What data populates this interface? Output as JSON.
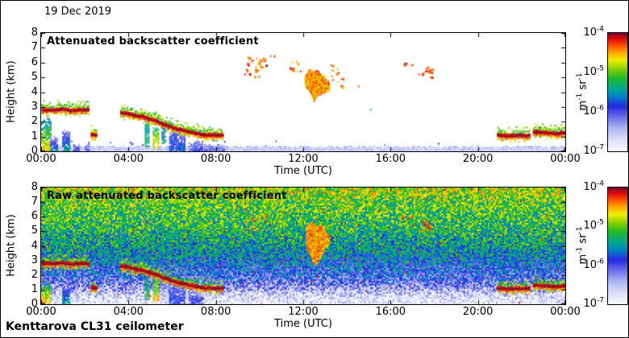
{
  "figure": {
    "date": "19 Dec 2019",
    "footer": "Kenttarova CL31 ceilometer",
    "background": "#ffffff",
    "border_color": "#000000"
  },
  "colormap": {
    "scale": "log",
    "stops": [
      {
        "p": 0.0,
        "c": "#f8f8ff"
      },
      {
        "p": 0.1,
        "c": "#dcdef8"
      },
      {
        "p": 0.2,
        "c": "#aab2f2"
      },
      {
        "p": 0.3,
        "c": "#6066ea"
      },
      {
        "p": 0.38,
        "c": "#2428e0"
      },
      {
        "p": 0.46,
        "c": "#0080c8"
      },
      {
        "p": 0.53,
        "c": "#00a890"
      },
      {
        "p": 0.62,
        "c": "#22b82a"
      },
      {
        "p": 0.7,
        "c": "#8ed000"
      },
      {
        "p": 0.77,
        "c": "#eeee00"
      },
      {
        "p": 0.83,
        "c": "#ffaa00"
      },
      {
        "p": 0.89,
        "c": "#ff5500"
      },
      {
        "p": 0.95,
        "c": "#dd0a0a"
      },
      {
        "p": 1.0,
        "c": "#6e0b33"
      }
    ]
  },
  "chart_data": [
    {
      "type": "heatmap",
      "title": "Attenuated backscatter coefficient",
      "xlabel": "Time (UTC)",
      "ylabel": "Height (km)",
      "xlim_hours": [
        0,
        24
      ],
      "ylim_km": [
        0,
        8
      ],
      "xticks": {
        "hours": [
          0,
          4,
          8,
          12,
          16,
          20,
          24
        ],
        "labels": [
          "00:00",
          "04:00",
          "08:00",
          "12:00",
          "16:00",
          "20:00",
          "00:00"
        ]
      },
      "yticks": [
        0,
        1,
        2,
        3,
        4,
        5,
        6,
        7,
        8
      ],
      "colorbar": {
        "label": "m^-1 sr^-1",
        "ticks": [
          "10^-4",
          "10^-5",
          "10^-6",
          "10^-7"
        ],
        "min": "1e-7 m-1 sr-1",
        "max": "1e-4 m-1 sr-1",
        "position": "right"
      },
      "render": {
        "seed": 7,
        "background": "#ffffff",
        "features": [
          {
            "type": "strip",
            "km_top": 0.38,
            "v": [
              0.08,
              0.2
            ]
          },
          {
            "type": "column",
            "t": [
              0.0,
              0.45
            ],
            "km": [
              0,
              2.3
            ],
            "v": [
              0.82,
              0.45
            ]
          },
          {
            "type": "column",
            "t": [
              0.45,
              0.8
            ],
            "km": [
              0,
              1.05
            ],
            "v": [
              0.5,
              0.22
            ]
          },
          {
            "type": "column",
            "t": [
              1.0,
              1.35
            ],
            "km": [
              0,
              1.45
            ],
            "v": [
              0.52,
              0.25
            ]
          },
          {
            "type": "column",
            "t": [
              1.5,
              1.75
            ],
            "km": [
              0,
              0.55
            ],
            "v": [
              0.38,
              0.18
            ]
          },
          {
            "type": "column",
            "t": [
              2.05,
              2.25
            ],
            "km": [
              0,
              0.6
            ],
            "v": [
              0.34,
              0.16
            ]
          },
          {
            "type": "column",
            "t": [
              4.78,
              4.97
            ],
            "km": [
              0.35,
              2.1
            ],
            "v": [
              0.55,
              0.5
            ]
          },
          {
            "type": "column",
            "t": [
              5.15,
              5.42
            ],
            "km": [
              0.25,
              1.95
            ],
            "v": [
              0.78,
              0.55
            ]
          },
          {
            "type": "column",
            "t": [
              5.55,
              5.72
            ],
            "km": [
              0.55,
              1.7
            ],
            "v": [
              0.5,
              0.45
            ]
          },
          {
            "type": "column",
            "t": [
              5.9,
              6.22
            ],
            "km": [
              0,
              1.55
            ],
            "v": [
              0.42,
              0.3
            ]
          },
          {
            "type": "column",
            "t": [
              6.28,
              6.6
            ],
            "km": [
              0,
              1.3
            ],
            "v": [
              0.44,
              0.3
            ]
          },
          {
            "type": "column",
            "t": [
              6.8,
              7.45
            ],
            "km": [
              0,
              0.68
            ],
            "v": [
              0.36,
              0.2
            ]
          },
          {
            "type": "column",
            "t": [
              7.5,
              8.45
            ],
            "km": [
              0,
              0.5
            ],
            "v": [
              0.3,
              0.18
            ]
          },
          {
            "type": "layer",
            "points": [
              [
                0.05,
                2.8
              ],
              [
                0.6,
                2.78
              ],
              [
                1.0,
                2.86
              ],
              [
                1.4,
                2.72
              ],
              [
                1.8,
                2.8
              ],
              [
                2.2,
                2.78
              ]
            ]
          },
          {
            "type": "layer",
            "points": [
              [
                2.3,
                1.15
              ],
              [
                2.55,
                1.1
              ]
            ]
          },
          {
            "type": "layer",
            "points": [
              [
                3.65,
                2.6
              ],
              [
                4.0,
                2.55
              ],
              [
                4.35,
                2.4
              ],
              [
                4.7,
                2.33
              ],
              [
                5.0,
                2.15
              ],
              [
                5.3,
                2.02
              ],
              [
                5.6,
                1.83
              ],
              [
                5.9,
                1.68
              ],
              [
                6.2,
                1.52
              ],
              [
                6.55,
                1.4
              ],
              [
                6.9,
                1.28
              ],
              [
                7.25,
                1.16
              ],
              [
                7.6,
                1.1
              ],
              [
                8.0,
                1.08
              ],
              [
                8.35,
                1.1
              ]
            ]
          },
          {
            "type": "layer",
            "points": [
              [
                20.9,
                1.1
              ],
              [
                21.4,
                1.04
              ],
              [
                21.9,
                1.07
              ],
              [
                22.4,
                1.05
              ]
            ]
          },
          {
            "type": "layer",
            "points": [
              [
                22.55,
                1.3
              ],
              [
                23.1,
                1.25
              ],
              [
                23.6,
                1.2
              ],
              [
                24.0,
                1.24
              ]
            ]
          },
          {
            "type": "cluster",
            "t": [
              9.25,
              10.35
            ],
            "km": [
              5.0,
              6.45
            ],
            "density": 0.16,
            "v": [
              0.8,
              0.97
            ]
          },
          {
            "type": "cluster",
            "t": [
              10.5,
              10.7
            ],
            "km": [
              6.3,
              6.6
            ],
            "density": 0.35,
            "v": [
              0.85,
              0.95
            ]
          },
          {
            "type": "cluster",
            "t": [
              11.35,
              12.05
            ],
            "km": [
              5.3,
              6.15
            ],
            "density": 0.14,
            "v": [
              0.8,
              0.95
            ]
          },
          {
            "type": "blob",
            "profile": [
              [
                12.1,
                5.0,
                4.5
              ],
              [
                12.3,
                5.55,
                4.2
              ],
              [
                12.5,
                5.3,
                3.45
              ],
              [
                12.65,
                5.4,
                3.8
              ],
              [
                12.9,
                5.1,
                4.05
              ],
              [
                13.1,
                4.75,
                4.1
              ],
              [
                13.25,
                4.45,
                4.3
              ]
            ]
          },
          {
            "type": "cluster",
            "t": [
              13.25,
              13.85
            ],
            "km": [
              4.1,
              5.9
            ],
            "density": 0.12,
            "v": [
              0.78,
              0.92
            ]
          },
          {
            "type": "cluster",
            "t": [
              14.4,
              14.55
            ],
            "km": [
              4.35,
              4.55
            ],
            "density": 0.3,
            "v": [
              0.84,
              0.9
            ]
          },
          {
            "type": "cluster",
            "t": [
              16.55,
              17.05
            ],
            "km": [
              5.75,
              6.05
            ],
            "density": 0.4,
            "v": [
              0.88,
              0.97
            ]
          },
          {
            "type": "cluster",
            "t": [
              17.3,
              17.95
            ],
            "km": [
              4.95,
              5.7
            ],
            "density": 0.32,
            "v": [
              0.85,
              0.98
            ]
          },
          {
            "type": "cluster",
            "t": [
              15.05,
              15.2
            ],
            "km": [
              2.8,
              2.95
            ],
            "density": 0.3,
            "v": [
              0.58,
              0.65
            ]
          },
          {
            "type": "cluster",
            "t": [
              0.3,
              24
            ],
            "km": [
              0.4,
              0.75
            ],
            "density": 0.012,
            "v": [
              0.2,
              0.38
            ]
          }
        ]
      }
    },
    {
      "type": "heatmap",
      "title": "Raw attenuated backscatter coefficient",
      "xlabel": "Time (UTC)",
      "ylabel": "Height (km)",
      "xlim_hours": [
        0,
        24
      ],
      "ylim_km": [
        0,
        8
      ],
      "xticks": {
        "hours": [
          0,
          4,
          8,
          12,
          16,
          20,
          24
        ],
        "labels": [
          "00:00",
          "04:00",
          "08:00",
          "12:00",
          "16:00",
          "20:00",
          "00:00"
        ]
      },
      "yticks": [
        0,
        1,
        2,
        3,
        4,
        5,
        6,
        7,
        8
      ],
      "colorbar": {
        "label": "m^-1 sr^-1",
        "ticks": [
          "10^-4",
          "10^-5",
          "10^-6",
          "10^-7"
        ],
        "min": "1e-7 m-1 sr-1",
        "max": "1e-4 m-1 sr-1",
        "position": "right"
      },
      "render": {
        "seed": 11,
        "noise_profile": [
          [
            0,
            0.04
          ],
          [
            0.4,
            0.07
          ],
          [
            0.9,
            0.16
          ],
          [
            1.4,
            0.28
          ],
          [
            2.0,
            0.35
          ],
          [
            3.0,
            0.44
          ],
          [
            4.0,
            0.52
          ],
          [
            5.0,
            0.58
          ],
          [
            6.0,
            0.62
          ],
          [
            7.0,
            0.66
          ],
          [
            7.6,
            0.7
          ],
          [
            8.0,
            0.72
          ]
        ],
        "noise_jitter": 0.34,
        "hot_speck_probability": 0.004,
        "features": [
          {
            "type": "column",
            "t": [
              0.0,
              0.5
            ],
            "km": [
              0,
              1.6
            ],
            "v": [
              0.85,
              0.5
            ]
          },
          {
            "type": "column",
            "t": [
              1.0,
              1.35
            ],
            "km": [
              0,
              1.4
            ],
            "v": [
              0.5,
              0.3
            ]
          },
          {
            "type": "column",
            "t": [
              4.78,
              4.97
            ],
            "km": [
              0.35,
              2.1
            ],
            "v": [
              0.6,
              0.5
            ]
          },
          {
            "type": "column",
            "t": [
              5.15,
              5.42
            ],
            "km": [
              0.25,
              1.95
            ],
            "v": [
              0.8,
              0.55
            ]
          },
          {
            "type": "column",
            "t": [
              5.9,
              6.6
            ],
            "km": [
              0,
              1.5
            ],
            "v": [
              0.38,
              0.3
            ]
          },
          {
            "type": "column",
            "t": [
              6.8,
              7.4
            ],
            "km": [
              0,
              0.8
            ],
            "v": [
              0.35,
              0.25
            ]
          },
          {
            "type": "layer",
            "points": [
              [
                0.05,
                2.8
              ],
              [
                0.6,
                2.78
              ],
              [
                1.0,
                2.86
              ],
              [
                1.4,
                2.72
              ],
              [
                1.8,
                2.8
              ],
              [
                2.2,
                2.78
              ]
            ]
          },
          {
            "type": "layer",
            "points": [
              [
                2.3,
                1.15
              ],
              [
                2.55,
                1.1
              ]
            ]
          },
          {
            "type": "layer",
            "points": [
              [
                3.65,
                2.6
              ],
              [
                4.0,
                2.55
              ],
              [
                4.35,
                2.4
              ],
              [
                4.7,
                2.33
              ],
              [
                5.0,
                2.15
              ],
              [
                5.3,
                2.02
              ],
              [
                5.6,
                1.83
              ],
              [
                5.9,
                1.68
              ],
              [
                6.2,
                1.52
              ],
              [
                6.55,
                1.4
              ],
              [
                6.9,
                1.28
              ],
              [
                7.25,
                1.16
              ],
              [
                7.6,
                1.1
              ],
              [
                8.0,
                1.08
              ],
              [
                8.35,
                1.1
              ]
            ]
          },
          {
            "type": "layer",
            "points": [
              [
                20.9,
                1.1
              ],
              [
                21.4,
                1.04
              ],
              [
                21.9,
                1.07
              ],
              [
                22.4,
                1.05
              ]
            ]
          },
          {
            "type": "layer",
            "points": [
              [
                22.55,
                1.3
              ],
              [
                23.1,
                1.25
              ],
              [
                23.6,
                1.2
              ],
              [
                24.0,
                1.24
              ]
            ]
          },
          {
            "type": "cluster",
            "t": [
              9.3,
              10.3
            ],
            "km": [
              5.0,
              6.4
            ],
            "density": 0.1,
            "v": [
              0.8,
              0.92
            ]
          },
          {
            "type": "blob",
            "profile": [
              [
                12.15,
                5.3,
                4.1
              ],
              [
                12.4,
                5.6,
                3.2
              ],
              [
                12.6,
                5.2,
                2.7
              ],
              [
                12.8,
                5.4,
                3.3
              ],
              [
                13.0,
                5.0,
                3.9
              ],
              [
                13.2,
                4.6,
                4.1
              ]
            ]
          },
          {
            "type": "cluster",
            "t": [
              16.55,
              17.05
            ],
            "km": [
              5.75,
              6.05
            ],
            "density": 0.35,
            "v": [
              0.86,
              0.95
            ]
          },
          {
            "type": "cluster",
            "t": [
              17.3,
              17.95
            ],
            "km": [
              4.95,
              5.7
            ],
            "density": 0.3,
            "v": [
              0.84,
              0.95
            ]
          }
        ]
      }
    }
  ]
}
